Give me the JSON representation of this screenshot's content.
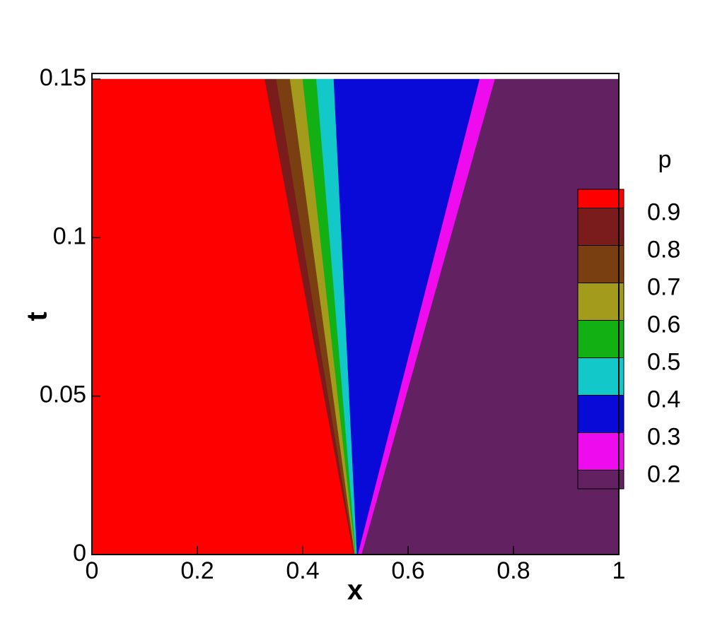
{
  "chart_data": {
    "type": "contour",
    "xlabel": "x",
    "ylabel": "t",
    "xlim": [
      0,
      1
    ],
    "ylim": [
      0,
      0.15
    ],
    "xticks": [
      0,
      0.2,
      0.4,
      0.6,
      0.8,
      1
    ],
    "yticks": [
      0,
      0.05,
      0.1,
      0.15
    ],
    "legend_title": "p",
    "levels": [
      0.9,
      0.8,
      0.7,
      0.6,
      0.5,
      0.4,
      0.3,
      0.2
    ],
    "colors": [
      "#ff0000",
      "#7a1c1c",
      "#7a3f10",
      "#a29b1c",
      "#12b012",
      "#12c8c8",
      "#0a0ad8",
      "#ee0cee",
      "#622262"
    ],
    "boundary_t": [
      0,
      0.15
    ],
    "boundaries": [
      [
        0.497,
        0.328
      ],
      [
        0.498,
        0.35
      ],
      [
        0.499,
        0.376
      ],
      [
        0.5,
        0.4
      ],
      [
        0.501,
        0.426
      ],
      [
        0.503,
        0.459
      ],
      [
        0.505,
        0.736
      ],
      [
        0.512,
        0.765
      ]
    ]
  }
}
